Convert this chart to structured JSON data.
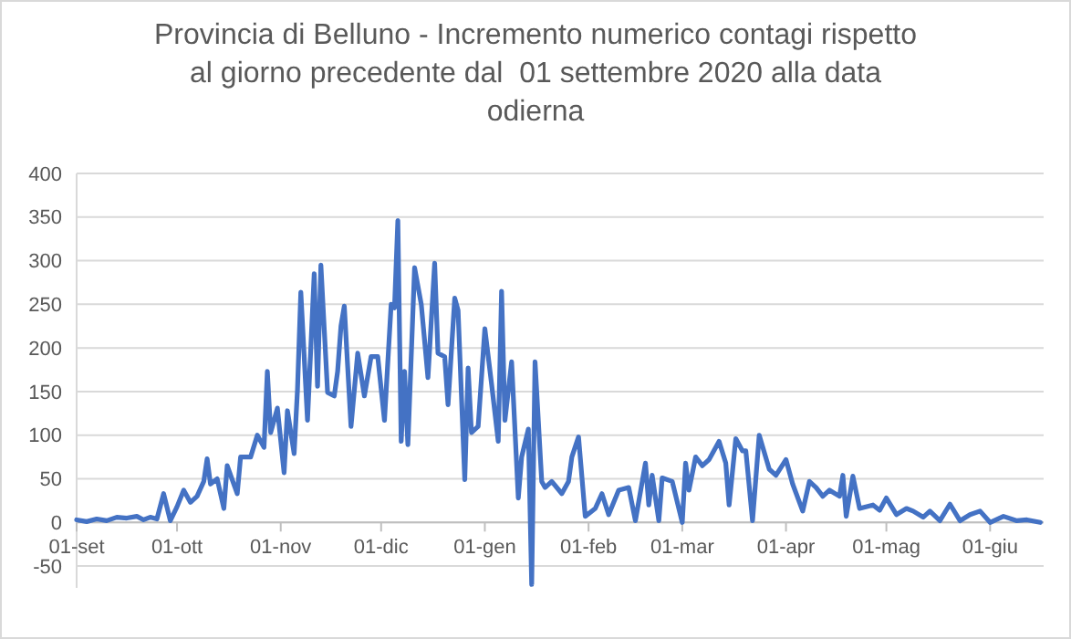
{
  "chart_data": {
    "type": "line",
    "title": "Provincia di Belluno - Incremento numerico contagi rispetto al giorno precedente dal  01 settembre 2020 alla data odierna",
    "x": [
      "2020-09-01",
      "2020-09-04",
      "2020-09-07",
      "2020-09-10",
      "2020-09-13",
      "2020-09-16",
      "2020-09-19",
      "2020-09-21",
      "2020-09-23",
      "2020-09-25",
      "2020-09-27",
      "2020-09-29",
      "2020-10-01",
      "2020-10-03",
      "2020-10-05",
      "2020-10-07",
      "2020-10-09",
      "2020-10-10",
      "2020-10-11",
      "2020-10-13",
      "2020-10-15",
      "2020-10-16",
      "2020-10-19",
      "2020-10-20",
      "2020-10-23",
      "2020-10-25",
      "2020-10-27",
      "2020-10-28",
      "2020-10-29",
      "2020-10-31",
      "2020-11-02",
      "2020-11-03",
      "2020-11-05",
      "2020-11-06",
      "2020-11-07",
      "2020-11-09",
      "2020-11-11",
      "2020-11-12",
      "2020-11-13",
      "2020-11-15",
      "2020-11-17",
      "2020-11-18",
      "2020-11-19",
      "2020-11-20",
      "2020-11-22",
      "2020-11-24",
      "2020-11-26",
      "2020-11-28",
      "2020-11-30",
      "2020-12-02",
      "2020-12-04",
      "2020-12-05",
      "2020-12-06",
      "2020-12-07",
      "2020-12-08",
      "2020-12-09",
      "2020-12-11",
      "2020-12-13",
      "2020-12-15",
      "2020-12-17",
      "2020-12-18",
      "2020-12-20",
      "2020-12-21",
      "2020-12-23",
      "2020-12-24",
      "2020-12-26",
      "2020-12-27",
      "2020-12-28",
      "2020-12-30",
      "2021-01-01",
      "2021-01-03",
      "2021-01-05",
      "2021-01-06",
      "2021-01-07",
      "2021-01-09",
      "2021-01-11",
      "2021-01-12",
      "2021-01-14",
      "2021-01-15",
      "2021-01-16",
      "2021-01-18",
      "2021-01-19",
      "2021-01-21",
      "2021-01-24",
      "2021-01-26",
      "2021-01-27",
      "2021-01-29",
      "2021-01-31",
      "2021-02-03",
      "2021-02-05",
      "2021-02-07",
      "2021-02-10",
      "2021-02-13",
      "2021-02-15",
      "2021-02-18",
      "2021-02-19",
      "2021-02-20",
      "2021-02-22",
      "2021-02-23",
      "2021-02-26",
      "2021-03-01",
      "2021-03-02",
      "2021-03-03",
      "2021-03-05",
      "2021-03-07",
      "2021-03-09",
      "2021-03-12",
      "2021-03-14",
      "2021-03-15",
      "2021-03-17",
      "2021-03-19",
      "2021-03-20",
      "2021-03-22",
      "2021-03-24",
      "2021-03-27",
      "2021-03-29",
      "2021-04-01",
      "2021-04-03",
      "2021-04-06",
      "2021-04-08",
      "2021-04-10",
      "2021-04-12",
      "2021-04-14",
      "2021-04-17",
      "2021-04-18",
      "2021-04-19",
      "2021-04-21",
      "2021-04-23",
      "2021-04-27",
      "2021-04-29",
      "2021-05-01",
      "2021-05-04",
      "2021-05-07",
      "2021-05-09",
      "2021-05-12",
      "2021-05-14",
      "2021-05-17",
      "2021-05-20",
      "2021-05-23",
      "2021-05-26",
      "2021-05-29",
      "2021-06-01",
      "2021-06-05",
      "2021-06-09",
      "2021-06-12",
      "2021-06-16"
    ],
    "series": [
      {
        "color": "#4472c4",
        "values": [
          3,
          1,
          4,
          2,
          6,
          5,
          7,
          3,
          6,
          4,
          33,
          2,
          18,
          37,
          23,
          30,
          47,
          73,
          44,
          50,
          16,
          65,
          33,
          75,
          75,
          100,
          86,
          173,
          103,
          131,
          57,
          128,
          79,
          152,
          264,
          117,
          285,
          156,
          295,
          149,
          145,
          173,
          225,
          248,
          110,
          194,
          145,
          190,
          190,
          117,
          250,
          246,
          346,
          93,
          173,
          89,
          292,
          250,
          166,
          297,
          194,
          190,
          135,
          257,
          243,
          49,
          177,
          103,
          110,
          222,
          159,
          93,
          265,
          117,
          184,
          28,
          75,
          107,
          -71,
          184,
          47,
          40,
          47,
          33,
          47,
          75,
          98,
          7,
          16,
          33,
          9,
          37,
          40,
          2,
          68,
          20,
          54,
          2,
          51,
          47,
          0,
          68,
          37,
          75,
          65,
          72,
          93,
          68,
          20,
          96,
          82,
          82,
          2,
          100,
          61,
          54,
          72,
          44,
          13,
          47,
          40,
          30,
          37,
          30,
          54,
          7,
          53,
          16,
          20,
          14,
          28,
          9,
          16,
          13,
          6,
          13,
          2,
          21,
          2,
          9,
          13,
          0,
          7,
          2,
          3,
          0
        ]
      }
    ],
    "xlim": [
      "2020-09-01",
      "2021-06-17"
    ],
    "xticks": [
      {
        "value": "2020-09-01",
        "label": "01-set"
      },
      {
        "value": "2020-10-01",
        "label": "01-ott"
      },
      {
        "value": "2020-11-01",
        "label": "01-nov"
      },
      {
        "value": "2020-12-01",
        "label": "01-dic"
      },
      {
        "value": "2021-01-01",
        "label": "01-gen"
      },
      {
        "value": "2021-02-01",
        "label": "01-feb"
      },
      {
        "value": "2021-03-01",
        "label": "01-mar"
      },
      {
        "value": "2021-04-01",
        "label": "01-apr"
      },
      {
        "value": "2021-05-01",
        "label": "01-mag"
      },
      {
        "value": "2021-06-01",
        "label": "01-giu"
      }
    ],
    "ylim": [
      -75,
      400
    ],
    "yticks": [
      -50,
      0,
      50,
      100,
      150,
      200,
      250,
      300,
      350,
      400
    ],
    "grid": "y",
    "line_style": "solid"
  }
}
